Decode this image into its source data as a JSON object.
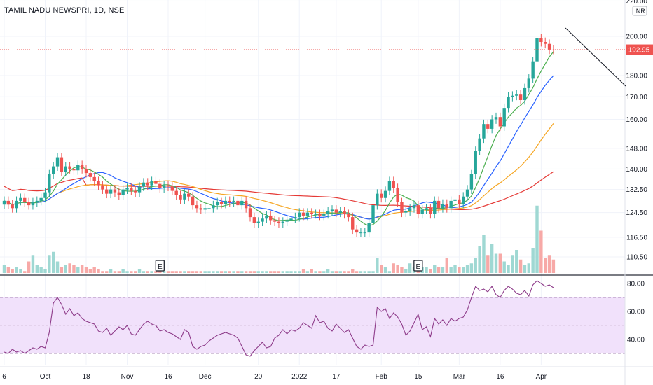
{
  "header": {
    "title": "TAMIL NADU NEWSPRI, 1D, NSE"
  },
  "price_axis": {
    "currency": "INR",
    "ticks": [
      "220.00",
      "200.00",
      "180.00",
      "170.00",
      "160.00",
      "148.00",
      "140.00",
      "132.50",
      "124.50",
      "116.50",
      "110.50"
    ],
    "last_price": "192.95"
  },
  "rsi_axis": {
    "ticks": [
      "80.00",
      "60.00",
      "40.00"
    ],
    "band_upper": 70,
    "band_lower": 30
  },
  "time_axis": {
    "labels": [
      "6",
      "Oct",
      "18",
      "Nov",
      "16",
      "Dec",
      "20",
      "2022",
      "17",
      "Feb",
      "15",
      "Mar",
      "16",
      "Apr"
    ]
  },
  "events": [
    "E",
    "E"
  ],
  "colors": {
    "up": "#26a69a",
    "down": "#ef5350",
    "ma_fast": "#4caf50",
    "ma_mid": "#2962ff",
    "ma_slow": "#f5a623",
    "ma_long": "#e53935",
    "rsi": "#8e3c8a",
    "rsi_band": "#f1e1fb"
  },
  "chart_data": [
    {
      "type": "candlestick",
      "title": "TAMIL NADU NEWSPRI, 1D, NSE",
      "ylabel": "INR",
      "ylim": [
        104,
        222
      ],
      "scale": "log",
      "last_price": 192.95,
      "close": [
        128.5,
        127.2,
        126.0,
        128.5,
        129.5,
        128.0,
        127.0,
        128.0,
        128.5,
        129.5,
        131.5,
        138.0,
        141.0,
        144.5,
        139.0,
        141.0,
        140.0,
        139.5,
        141.5,
        140.0,
        138.5,
        137.0,
        135.5,
        134.0,
        132.5,
        131.0,
        132.5,
        131.5,
        130.5,
        132.5,
        133.0,
        132.0,
        131.5,
        133.5,
        135.0,
        134.0,
        135.5,
        134.5,
        133.0,
        134.0,
        133.5,
        132.0,
        130.5,
        129.0,
        131.0,
        130.0,
        127.0,
        126.0,
        125.5,
        126.0,
        126.0,
        127.0,
        128.0,
        127.5,
        128.5,
        128.0,
        128.5,
        127.0,
        128.5,
        126.0,
        123.0,
        121.0,
        121.5,
        122.5,
        123.5,
        122.0,
        121.5,
        121.0,
        121.5,
        122.0,
        122.5,
        123.0,
        124.5,
        123.5,
        124.5,
        124.0,
        124.0,
        123.5,
        124.0,
        125.0,
        125.5,
        124.5,
        125.0,
        124.0,
        123.0,
        119.0,
        118.0,
        118.0,
        118.0,
        121.0,
        127.0,
        131.0,
        129.5,
        132.0,
        135.5,
        133.0,
        128.0,
        124.5,
        125.0,
        126.0,
        127.0,
        124.0,
        125.5,
        126.0,
        124.0,
        128.5,
        126.0,
        127.5,
        126.0,
        128.5,
        129.0,
        127.5,
        130.0,
        132.5,
        138.0,
        147.0,
        152.0,
        158.0,
        156.0,
        160.0,
        161.0,
        157.0,
        165.0,
        170.0,
        170.5,
        171.0,
        168.5,
        174.0,
        178.5,
        187.0,
        199.0,
        197.0,
        196.0,
        193.0,
        192.95
      ],
      "volume": [
        4,
        3,
        2,
        3,
        2,
        1,
        6,
        9,
        4,
        3,
        2,
        9,
        11,
        6,
        3,
        4,
        5,
        4,
        3,
        4,
        3,
        2,
        3,
        2,
        1,
        1,
        2,
        1,
        1,
        2,
        1,
        1,
        1,
        2,
        1,
        1,
        1,
        1,
        1,
        1,
        1,
        1,
        1,
        1,
        1,
        1,
        1,
        1,
        1,
        1,
        1,
        1,
        1,
        1,
        1,
        1,
        1,
        1,
        1,
        1,
        1,
        1,
        1,
        1,
        1,
        1,
        1,
        1,
        1,
        1,
        1,
        1,
        1,
        2,
        1,
        2,
        1,
        1,
        1,
        2,
        1,
        1,
        1,
        1,
        1,
        2,
        1,
        1,
        1,
        1,
        1,
        8,
        4,
        3,
        1,
        5,
        4,
        3,
        2,
        5,
        3,
        2,
        3,
        3,
        2,
        4,
        3,
        3,
        8,
        3,
        4,
        3,
        3,
        4,
        5,
        8,
        14,
        20,
        9,
        15,
        10,
        10,
        6,
        4,
        9,
        12,
        7,
        4,
        5,
        13,
        35,
        22,
        8,
        9,
        7
      ],
      "series": [
        {
          "name": "",
          "type": "line",
          "values": []
        }
      ]
    },
    {
      "type": "line",
      "ylim": [
        24,
        85
      ],
      "band": [
        30,
        70
      ],
      "values": [
        31,
        30,
        33,
        31,
        32,
        30,
        32,
        34,
        33,
        35,
        34,
        45,
        66,
        70,
        65,
        58,
        62,
        57,
        59,
        55,
        53,
        52,
        51,
        46,
        45,
        48,
        43,
        46,
        49,
        47,
        50,
        44,
        43,
        47,
        51,
        53,
        51,
        50,
        46,
        47,
        45,
        44,
        42,
        40,
        47,
        45,
        35,
        33,
        35,
        36,
        39,
        41,
        43,
        44,
        45,
        44,
        43,
        41,
        35,
        29,
        28,
        32,
        35,
        38,
        34,
        35,
        41,
        43,
        47,
        44,
        47,
        46,
        48,
        52,
        50,
        48,
        57,
        52,
        53,
        48,
        46,
        51,
        48,
        45,
        47,
        41,
        35,
        33,
        36,
        35,
        36,
        63,
        60,
        62,
        55,
        59,
        56,
        51,
        43,
        46,
        52,
        58,
        47,
        49,
        42,
        55,
        51,
        54,
        50,
        55,
        53,
        55,
        56,
        61,
        70,
        78,
        75,
        76,
        74,
        78,
        72,
        70,
        75,
        78,
        76,
        73,
        72,
        75,
        71,
        79,
        82,
        80,
        78,
        79,
        77
      ]
    }
  ]
}
